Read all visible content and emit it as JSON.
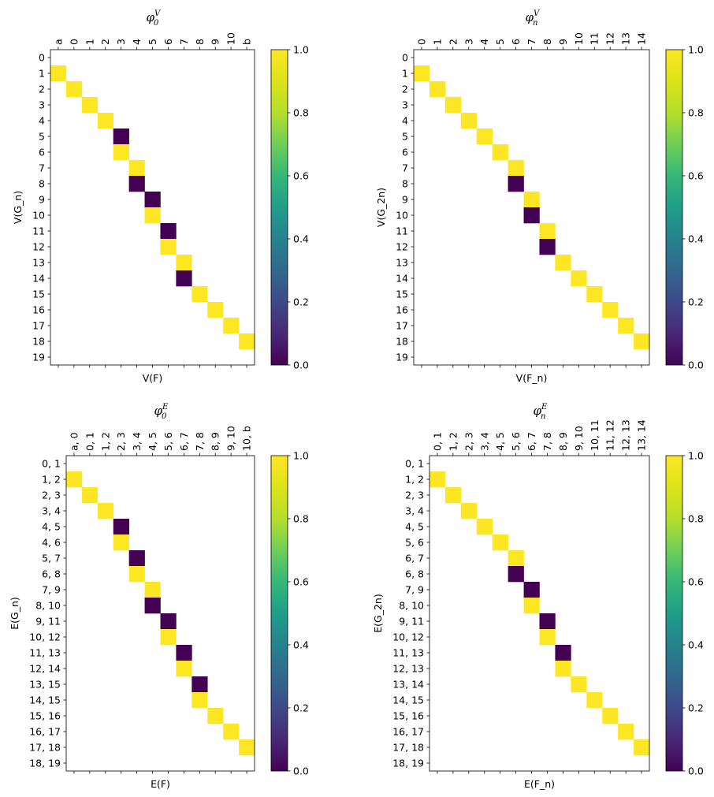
{
  "figure": {
    "colormap": "viridis",
    "colors": {
      "low": "#440154",
      "high": "#fde725",
      "grid_bg": "#ffffff",
      "axes": "#000000"
    }
  },
  "chart_data": [
    {
      "id": "phi0V",
      "type": "heatmap",
      "title": {
        "base": "φ",
        "sub": "0",
        "sup": "V"
      },
      "xlabel": "V(F)",
      "ylabel": "V(G_n)",
      "x_tick_labels": [
        "a",
        "0",
        "1",
        "2",
        "3",
        "4",
        "5",
        "6",
        "7",
        "8",
        "9",
        "10",
        "b"
      ],
      "y_tick_labels": [
        "0",
        "1",
        "2",
        "3",
        "4",
        "5",
        "6",
        "7",
        "8",
        "9",
        "10",
        "11",
        "12",
        "13",
        "14",
        "15",
        "16",
        "17",
        "18",
        "19"
      ],
      "value_range": [
        0.0,
        1.0
      ],
      "colorbar_ticks": [
        "0.0",
        "0.2",
        "0.4",
        "0.6",
        "0.8",
        "1.0"
      ],
      "cells": [
        {
          "row": 1,
          "col": 0,
          "value": 1
        },
        {
          "row": 2,
          "col": 1,
          "value": 1
        },
        {
          "row": 3,
          "col": 2,
          "value": 1
        },
        {
          "row": 4,
          "col": 3,
          "value": 1
        },
        {
          "row": 5,
          "col": 4,
          "value": 0
        },
        {
          "row": 6,
          "col": 4,
          "value": 1
        },
        {
          "row": 7,
          "col": 5,
          "value": 1
        },
        {
          "row": 8,
          "col": 5,
          "value": 0
        },
        {
          "row": 9,
          "col": 6,
          "value": 0
        },
        {
          "row": 10,
          "col": 6,
          "value": 1
        },
        {
          "row": 11,
          "col": 7,
          "value": 0
        },
        {
          "row": 12,
          "col": 7,
          "value": 1
        },
        {
          "row": 13,
          "col": 8,
          "value": 1
        },
        {
          "row": 14,
          "col": 8,
          "value": 0
        },
        {
          "row": 15,
          "col": 9,
          "value": 1
        },
        {
          "row": 16,
          "col": 10,
          "value": 1
        },
        {
          "row": 17,
          "col": 11,
          "value": 1
        },
        {
          "row": 18,
          "col": 12,
          "value": 1
        }
      ]
    },
    {
      "id": "phinV",
      "type": "heatmap",
      "title": {
        "base": "φ",
        "sub": "n",
        "sup": "V"
      },
      "xlabel": "V(F_n)",
      "ylabel": "V(G_2n)",
      "x_tick_labels": [
        "0",
        "1",
        "2",
        "3",
        "4",
        "5",
        "6",
        "7",
        "8",
        "9",
        "10",
        "11",
        "12",
        "13",
        "14"
      ],
      "y_tick_labels": [
        "0",
        "1",
        "2",
        "3",
        "4",
        "5",
        "6",
        "7",
        "8",
        "9",
        "10",
        "11",
        "12",
        "13",
        "14",
        "15",
        "16",
        "17",
        "18",
        "19"
      ],
      "value_range": [
        0.0,
        1.0
      ],
      "colorbar_ticks": [
        "0.0",
        "0.2",
        "0.4",
        "0.6",
        "0.8",
        "1.0"
      ],
      "cells": [
        {
          "row": 1,
          "col": 0,
          "value": 1
        },
        {
          "row": 2,
          "col": 1,
          "value": 1
        },
        {
          "row": 3,
          "col": 2,
          "value": 1
        },
        {
          "row": 4,
          "col": 3,
          "value": 1
        },
        {
          "row": 5,
          "col": 4,
          "value": 1
        },
        {
          "row": 6,
          "col": 5,
          "value": 1
        },
        {
          "row": 7,
          "col": 6,
          "value": 1
        },
        {
          "row": 8,
          "col": 6,
          "value": 0
        },
        {
          "row": 9,
          "col": 7,
          "value": 1
        },
        {
          "row": 10,
          "col": 7,
          "value": 0
        },
        {
          "row": 11,
          "col": 8,
          "value": 1
        },
        {
          "row": 12,
          "col": 8,
          "value": 0
        },
        {
          "row": 13,
          "col": 9,
          "value": 1
        },
        {
          "row": 14,
          "col": 10,
          "value": 1
        },
        {
          "row": 15,
          "col": 11,
          "value": 1
        },
        {
          "row": 16,
          "col": 12,
          "value": 1
        },
        {
          "row": 17,
          "col": 13,
          "value": 1
        },
        {
          "row": 18,
          "col": 14,
          "value": 1
        }
      ]
    },
    {
      "id": "phi0E",
      "type": "heatmap",
      "title": {
        "base": "φ",
        "sub": "0",
        "sup": "E"
      },
      "xlabel": "E(F)",
      "ylabel": "E(G_n)",
      "x_tick_labels": [
        "a, 0",
        "0, 1",
        "1, 2",
        "2, 3",
        "3, 4",
        "4, 5",
        "5, 6",
        "6, 7",
        "7, 8",
        "8, 9",
        "9, 10",
        "10, b"
      ],
      "y_tick_labels": [
        "0, 1",
        "1, 2",
        "2, 3",
        "3, 4",
        "4, 5",
        "4, 6",
        "5, 7",
        "6, 8",
        "7, 9",
        "8, 10",
        "9, 11",
        "10, 12",
        "11, 13",
        "12, 14",
        "13, 15",
        "14, 15",
        "15, 16",
        "16, 17",
        "17, 18",
        "18, 19"
      ],
      "value_range": [
        0.0,
        1.0
      ],
      "colorbar_ticks": [
        "0.0",
        "0.2",
        "0.4",
        "0.6",
        "0.8",
        "1.0"
      ],
      "cells": [
        {
          "row": 1,
          "col": 0,
          "value": 1
        },
        {
          "row": 2,
          "col": 1,
          "value": 1
        },
        {
          "row": 3,
          "col": 2,
          "value": 1
        },
        {
          "row": 4,
          "col": 3,
          "value": 0
        },
        {
          "row": 5,
          "col": 3,
          "value": 1
        },
        {
          "row": 6,
          "col": 4,
          "value": 0
        },
        {
          "row": 7,
          "col": 4,
          "value": 1
        },
        {
          "row": 8,
          "col": 5,
          "value": 1
        },
        {
          "row": 9,
          "col": 5,
          "value": 0
        },
        {
          "row": 10,
          "col": 6,
          "value": 0
        },
        {
          "row": 11,
          "col": 6,
          "value": 1
        },
        {
          "row": 12,
          "col": 7,
          "value": 0
        },
        {
          "row": 13,
          "col": 7,
          "value": 1
        },
        {
          "row": 14,
          "col": 8,
          "value": 0
        },
        {
          "row": 15,
          "col": 8,
          "value": 1
        },
        {
          "row": 16,
          "col": 9,
          "value": 1
        },
        {
          "row": 17,
          "col": 10,
          "value": 1
        },
        {
          "row": 18,
          "col": 11,
          "value": 1
        }
      ]
    },
    {
      "id": "phinE",
      "type": "heatmap",
      "title": {
        "base": "φ",
        "sub": "n",
        "sup": "E"
      },
      "xlabel": "E(F_n)",
      "ylabel": "E(G_2n)",
      "x_tick_labels": [
        "0, 1",
        "1, 2",
        "2, 3",
        "3, 4",
        "4, 5",
        "5, 6",
        "6, 7",
        "7, 8",
        "8, 9",
        "9, 10",
        "10, 11",
        "11, 12",
        "12, 13",
        "13, 14"
      ],
      "y_tick_labels": [
        "0, 1",
        "1, 2",
        "2, 3",
        "3, 4",
        "4, 5",
        "5, 6",
        "6, 7",
        "6, 8",
        "7, 9",
        "8, 10",
        "9, 11",
        "10, 12",
        "11, 13",
        "12, 13",
        "13, 14",
        "14, 15",
        "15, 16",
        "16, 17",
        "17, 18",
        "18, 19"
      ],
      "value_range": [
        0.0,
        1.0
      ],
      "colorbar_ticks": [
        "0.0",
        "0.2",
        "0.4",
        "0.6",
        "0.8",
        "1.0"
      ],
      "cells": [
        {
          "row": 1,
          "col": 0,
          "value": 1
        },
        {
          "row": 2,
          "col": 1,
          "value": 1
        },
        {
          "row": 3,
          "col": 2,
          "value": 1
        },
        {
          "row": 4,
          "col": 3,
          "value": 1
        },
        {
          "row": 5,
          "col": 4,
          "value": 1
        },
        {
          "row": 6,
          "col": 5,
          "value": 1
        },
        {
          "row": 7,
          "col": 5,
          "value": 0
        },
        {
          "row": 8,
          "col": 6,
          "value": 0
        },
        {
          "row": 9,
          "col": 6,
          "value": 1
        },
        {
          "row": 10,
          "col": 7,
          "value": 0
        },
        {
          "row": 11,
          "col": 7,
          "value": 1
        },
        {
          "row": 12,
          "col": 8,
          "value": 0
        },
        {
          "row": 13,
          "col": 8,
          "value": 1
        },
        {
          "row": 14,
          "col": 9,
          "value": 1
        },
        {
          "row": 15,
          "col": 10,
          "value": 1
        },
        {
          "row": 16,
          "col": 11,
          "value": 1
        },
        {
          "row": 17,
          "col": 12,
          "value": 1
        },
        {
          "row": 18,
          "col": 13,
          "value": 1
        }
      ]
    }
  ]
}
